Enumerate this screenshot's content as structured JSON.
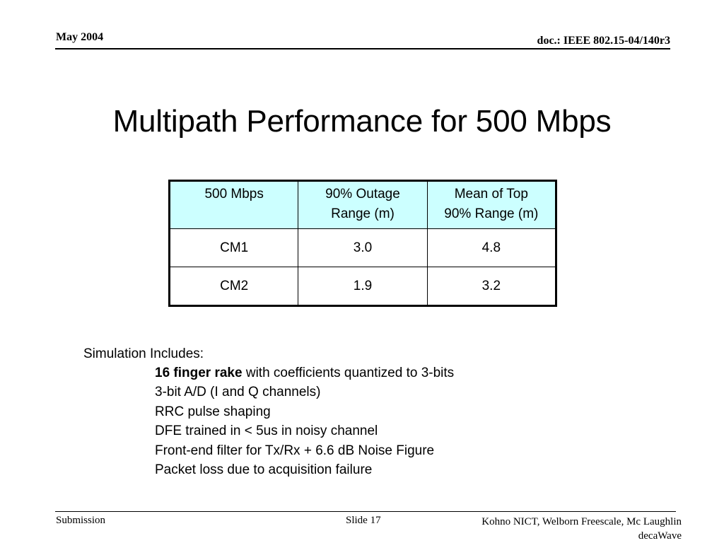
{
  "header": {
    "date": "May 2004",
    "doc_id": "doc.: IEEE 802.15-04/140r3"
  },
  "title": "Multipath Performance for 500 Mbps",
  "table": {
    "header_bg": "#ccffff",
    "columns": [
      {
        "line1": "500 Mbps",
        "line2": ""
      },
      {
        "line1": "90% Outage",
        "line2": "Range (m)"
      },
      {
        "line1": "Mean of Top",
        "line2": "90% Range (m)"
      }
    ],
    "rows": [
      {
        "channel": "CM1",
        "outage_range": "3.0",
        "mean_range": "4.8"
      },
      {
        "channel": "CM2",
        "outage_range": "1.9",
        "mean_range": "3.2"
      }
    ]
  },
  "simulation": {
    "intro": "Simulation Includes:",
    "items": [
      {
        "bold": "16 finger rake",
        "text": " with coefficients quantized to 3-bits"
      },
      {
        "bold": "",
        "text": "3-bit A/D (I and Q channels)"
      },
      {
        "bold": "",
        "text": "RRC pulse shaping"
      },
      {
        "bold": "",
        "text": "DFE trained in < 5us in noisy channel"
      },
      {
        "bold": "",
        "text": "Front-end filter for Tx/Rx + 6.6 dB Noise Figure"
      },
      {
        "bold": "",
        "text": "Packet loss due to acquisition failure"
      }
    ]
  },
  "footer": {
    "left": "Submission",
    "center": "Slide 17",
    "right_line1": "Kohno NICT, Welborn Freescale, Mc Laughlin",
    "right_line2": "decaWave"
  }
}
